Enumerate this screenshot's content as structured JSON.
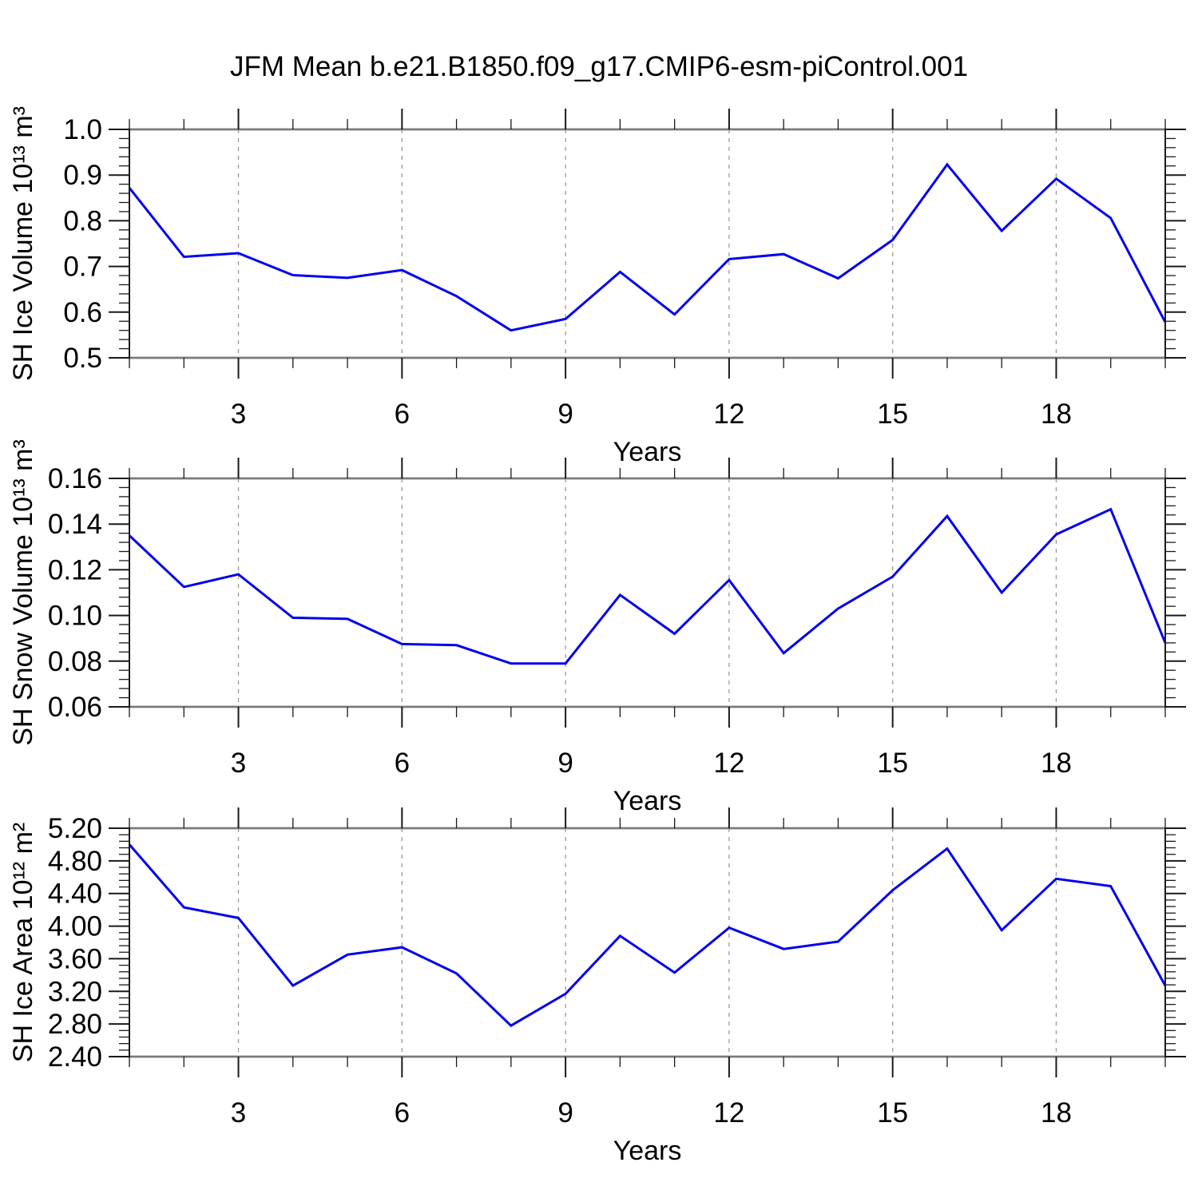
{
  "title": "JFM Mean b.e21.B1850.f09_g17.CMIP6-esm-piControl.001",
  "colors": {
    "line": "#0000EE",
    "grid": "#999999",
    "frame_horizontal": "#7a7a7a",
    "frame_vertical": "#1a1a1a",
    "tick": "#1a1a1a",
    "text": "#000000",
    "background": "#ffffff"
  },
  "chart_data": [
    {
      "type": "line",
      "name": "sh-ice-volume",
      "ylabel": "SH Ice Volume 10¹³ m³",
      "xlabel": "Years",
      "x": [
        1,
        2,
        3,
        4,
        5,
        6,
        7,
        8,
        9,
        10,
        11,
        12,
        13,
        14,
        15,
        16,
        17,
        18,
        19,
        20
      ],
      "values": [
        0.872,
        0.721,
        0.729,
        0.681,
        0.675,
        0.692,
        0.635,
        0.56,
        0.585,
        0.688,
        0.595,
        0.716,
        0.727,
        0.674,
        0.758,
        0.923,
        0.778,
        0.892,
        0.806,
        0.578
      ],
      "xlim": [
        1,
        20
      ],
      "ylim": [
        0.5,
        1.0
      ],
      "xtick_values": [
        3,
        6,
        9,
        12,
        15,
        18
      ],
      "xtick_labels": [
        "3",
        "6",
        "9",
        "12",
        "15",
        "18"
      ],
      "x_minor_step": 1,
      "ytick_values": [
        1.0,
        0.9,
        0.8,
        0.7,
        0.6,
        0.5
      ],
      "ytick_labels": [
        "1.0",
        "0.9",
        "0.8",
        "0.7",
        "0.6",
        "0.5"
      ],
      "y_minor_step": 0.02,
      "grid_at": [
        3,
        6,
        9,
        12,
        15,
        18
      ],
      "grid_on": true,
      "legend": "none"
    },
    {
      "type": "line",
      "name": "sh-snow-volume",
      "ylabel": "SH Snow Volume 10¹³ m³",
      "xlabel": "Years",
      "x": [
        1,
        2,
        3,
        4,
        5,
        6,
        7,
        8,
        9,
        10,
        11,
        12,
        13,
        14,
        15,
        16,
        17,
        18,
        19,
        20
      ],
      "values": [
        0.135,
        0.1125,
        0.118,
        0.099,
        0.0985,
        0.0875,
        0.087,
        0.079,
        0.079,
        0.109,
        0.092,
        0.1155,
        0.0835,
        0.103,
        0.117,
        0.1435,
        0.11,
        0.1355,
        0.1465,
        0.088
      ],
      "xlim": [
        1,
        20
      ],
      "ylim": [
        0.06,
        0.16
      ],
      "xtick_values": [
        3,
        6,
        9,
        12,
        15,
        18
      ],
      "xtick_labels": [
        "3",
        "6",
        "9",
        "12",
        "15",
        "18"
      ],
      "x_minor_step": 1,
      "ytick_values": [
        0.16,
        0.14,
        0.12,
        0.1,
        0.08,
        0.06
      ],
      "ytick_labels": [
        "0.16",
        "0.14",
        "0.12",
        "0.10",
        "0.08",
        "0.06"
      ],
      "y_minor_step": 0.004,
      "grid_at": [
        3,
        6,
        9,
        12,
        15,
        18
      ],
      "grid_on": true,
      "legend": "none"
    },
    {
      "type": "line",
      "name": "sh-ice-area",
      "ylabel": "SH Ice Area 10¹² m²",
      "xlabel": "Years",
      "x": [
        1,
        2,
        3,
        4,
        5,
        6,
        7,
        8,
        9,
        10,
        11,
        12,
        13,
        14,
        15,
        16,
        17,
        18,
        19,
        20
      ],
      "values": [
        5.0,
        4.23,
        4.1,
        3.27,
        3.65,
        3.74,
        3.42,
        2.78,
        3.17,
        3.88,
        3.43,
        3.98,
        3.72,
        3.81,
        4.44,
        4.95,
        3.95,
        4.58,
        4.49,
        3.27
      ],
      "xlim": [
        1,
        20
      ],
      "ylim": [
        2.4,
        5.2
      ],
      "xtick_values": [
        3,
        6,
        9,
        12,
        15,
        18
      ],
      "xtick_labels": [
        "3",
        "6",
        "9",
        "12",
        "15",
        "18"
      ],
      "x_minor_step": 1,
      "ytick_values": [
        5.2,
        4.8,
        4.4,
        4.0,
        3.6,
        3.2,
        2.8,
        2.4
      ],
      "ytick_labels": [
        "5.20",
        "4.80",
        "4.40",
        "4.00",
        "3.60",
        "3.20",
        "2.80",
        "2.40"
      ],
      "y_minor_step": 0.08,
      "grid_at": [
        3,
        6,
        9,
        12,
        15,
        18
      ],
      "grid_on": true,
      "legend": "none"
    }
  ]
}
